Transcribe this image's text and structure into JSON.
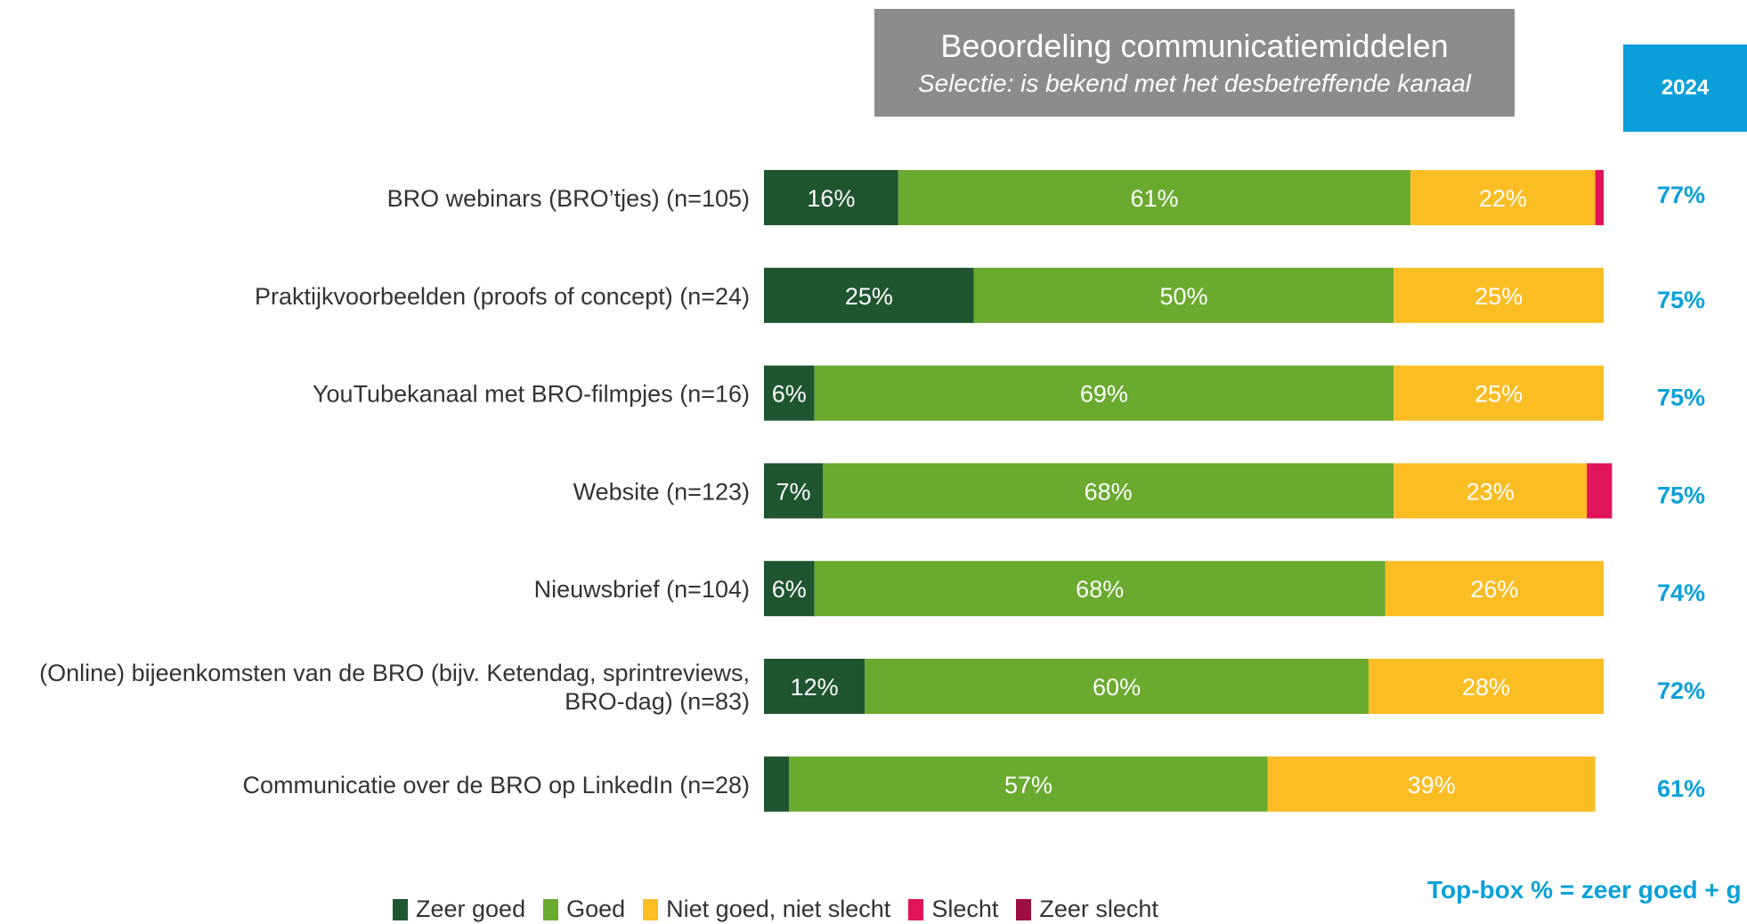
{
  "title": "Beoordeling communicatiemiddelen",
  "subtitle": "Selectie: is bekend met het desbetreffende kanaal",
  "year_label": "2024",
  "footnote": "Top-box % = zeer goed + g",
  "colors": {
    "zeer_goed": "#1f5530",
    "goed": "#6aaa2f",
    "niet_goed_niet_slecht": "#fbbd24",
    "slecht": "#e0145a",
    "zeer_slecht": "#9e0e45",
    "accent": "#0ba0d9",
    "title_bg": "#8c8c8c"
  },
  "chart_data": {
    "type": "bar",
    "orientation": "horizontal",
    "stacked": true,
    "xlim": [
      0,
      100
    ],
    "categories": [
      [
        "BRO webinars (BRO’tjes) (n=105)"
      ],
      [
        "Praktijkvoorbeelden (proofs of concept) (n=24)"
      ],
      [
        "YouTubekanaal met BRO-filmpjes (n=16)"
      ],
      [
        "Website (n=123)"
      ],
      [
        "Nieuwsbrief (n=104)"
      ],
      [
        "(Online) bijeenkomsten van de BRO (bijv. Ketendag, sprintreviews,",
        "BRO-dag) (n=83)"
      ],
      [
        "Communicatie over de BRO op LinkedIn (n=28)"
      ]
    ],
    "series": [
      {
        "name": "Zeer goed",
        "color": "#1f5530",
        "values": [
          16,
          25,
          6,
          7,
          6,
          12,
          3
        ],
        "labels": [
          "16%",
          "25%",
          "6%",
          "7%",
          "6%",
          "12%",
          ""
        ]
      },
      {
        "name": "Goed",
        "color": "#6aaa2f",
        "values": [
          61,
          50,
          69,
          68,
          68,
          60,
          57
        ],
        "labels": [
          "61%",
          "50%",
          "69%",
          "68%",
          "68%",
          "60%",
          "57%"
        ]
      },
      {
        "name": "Niet goed, niet slecht",
        "color": "#fbbd24",
        "values": [
          22,
          25,
          25,
          23,
          26,
          28,
          39
        ],
        "labels": [
          "22%",
          "25%",
          "25%",
          "23%",
          "26%",
          "28%",
          "39%"
        ]
      },
      {
        "name": "Slecht",
        "color": "#e0145a",
        "values": [
          1,
          0,
          0,
          3,
          0,
          0,
          0
        ],
        "labels": [
          "",
          "",
          "",
          "",
          "",
          "",
          ""
        ]
      },
      {
        "name": "Zeer slecht",
        "color": "#9e0e45",
        "values": [
          0,
          0,
          0,
          0,
          0,
          0,
          0
        ],
        "labels": [
          "",
          "",
          "",
          "",
          "",
          "",
          ""
        ]
      }
    ],
    "top_box": [
      "77%",
      "75%",
      "75%",
      "75%",
      "74%",
      "72%",
      "61%"
    ]
  }
}
